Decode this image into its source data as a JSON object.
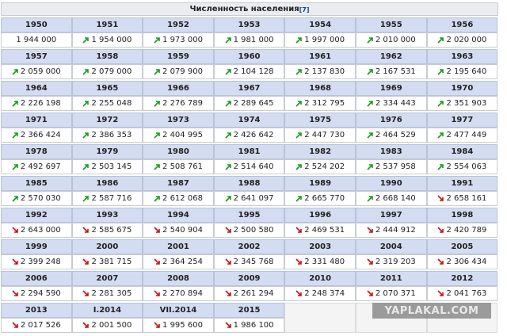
{
  "table": {
    "title": "Численность населения",
    "title_ref": "[7]",
    "cells": [
      {
        "year": "1950",
        "value": "1 944 000",
        "trend": null
      },
      {
        "year": "1951",
        "value": "1 954 000",
        "trend": "up"
      },
      {
        "year": "1952",
        "value": "1 973 000",
        "trend": "up"
      },
      {
        "year": "1953",
        "value": "1 981 000",
        "trend": "up"
      },
      {
        "year": "1954",
        "value": "1 997 000",
        "trend": "up"
      },
      {
        "year": "1955",
        "value": "2 010 000",
        "trend": "up"
      },
      {
        "year": "1956",
        "value": "2 020 000",
        "trend": "up"
      },
      {
        "year": "1957",
        "value": "2 059 000",
        "trend": "up"
      },
      {
        "year": "1958",
        "value": "2 079 000",
        "trend": "up"
      },
      {
        "year": "1959",
        "value": "2 079 900",
        "trend": "up"
      },
      {
        "year": "1960",
        "value": "2 104 128",
        "trend": "up"
      },
      {
        "year": "1961",
        "value": "2 137 830",
        "trend": "up"
      },
      {
        "year": "1962",
        "value": "2 167 531",
        "trend": "up"
      },
      {
        "year": "1963",
        "value": "2 195 640",
        "trend": "up"
      },
      {
        "year": "1964",
        "value": "2 226 198",
        "trend": "up"
      },
      {
        "year": "1965",
        "value": "2 255 048",
        "trend": "up"
      },
      {
        "year": "1966",
        "value": "2 276 789",
        "trend": "up"
      },
      {
        "year": "1967",
        "value": "2 289 645",
        "trend": "up"
      },
      {
        "year": "1968",
        "value": "2 312 795",
        "trend": "up"
      },
      {
        "year": "1969",
        "value": "2 334 443",
        "trend": "up"
      },
      {
        "year": "1970",
        "value": "2 351 903",
        "trend": "up"
      },
      {
        "year": "1971",
        "value": "2 366 424",
        "trend": "up"
      },
      {
        "year": "1972",
        "value": "2 386 353",
        "trend": "up"
      },
      {
        "year": "1973",
        "value": "2 404 995",
        "trend": "up"
      },
      {
        "year": "1974",
        "value": "2 426 642",
        "trend": "up"
      },
      {
        "year": "1975",
        "value": "2 447 730",
        "trend": "up"
      },
      {
        "year": "1976",
        "value": "2 464 529",
        "trend": "up"
      },
      {
        "year": "1977",
        "value": "2 477 449",
        "trend": "up"
      },
      {
        "year": "1978",
        "value": "2 492 697",
        "trend": "up"
      },
      {
        "year": "1979",
        "value": "2 503 145",
        "trend": "up"
      },
      {
        "year": "1980",
        "value": "2 508 761",
        "trend": "up"
      },
      {
        "year": "1981",
        "value": "2 514 640",
        "trend": "up"
      },
      {
        "year": "1982",
        "value": "2 524 202",
        "trend": "up"
      },
      {
        "year": "1983",
        "value": "2 537 958",
        "trend": "up"
      },
      {
        "year": "1984",
        "value": "2 554 063",
        "trend": "up"
      },
      {
        "year": "1985",
        "value": "2 570 030",
        "trend": "up"
      },
      {
        "year": "1986",
        "value": "2 587 716",
        "trend": "up"
      },
      {
        "year": "1987",
        "value": "2 612 068",
        "trend": "up"
      },
      {
        "year": "1988",
        "value": "2 641 097",
        "trend": "up"
      },
      {
        "year": "1989",
        "value": "2 665 770",
        "trend": "up"
      },
      {
        "year": "1990",
        "value": "2 668 140",
        "trend": "up"
      },
      {
        "year": "1991",
        "value": "2 658 161",
        "trend": "down"
      },
      {
        "year": "1992",
        "value": "2 643 000",
        "trend": "down"
      },
      {
        "year": "1993",
        "value": "2 585 675",
        "trend": "down"
      },
      {
        "year": "1994",
        "value": "2 540 904",
        "trend": "down"
      },
      {
        "year": "1995",
        "value": "2 500 580",
        "trend": "down"
      },
      {
        "year": "1996",
        "value": "2 469 531",
        "trend": "down"
      },
      {
        "year": "1997",
        "value": "2 444 912",
        "trend": "down"
      },
      {
        "year": "1998",
        "value": "2 420 789",
        "trend": "down"
      },
      {
        "year": "1999",
        "value": "2 399 248",
        "trend": "down"
      },
      {
        "year": "2000",
        "value": "2 381 715",
        "trend": "down"
      },
      {
        "year": "2001",
        "value": "2 364 254",
        "trend": "down"
      },
      {
        "year": "2002",
        "value": "2 345 768",
        "trend": "down"
      },
      {
        "year": "2003",
        "value": "2 331 480",
        "trend": "down"
      },
      {
        "year": "2004",
        "value": "2 319 203",
        "trend": "down"
      },
      {
        "year": "2005",
        "value": "2 306 434",
        "trend": "down"
      },
      {
        "year": "2006",
        "value": "2 294 590",
        "trend": "down"
      },
      {
        "year": "2007",
        "value": "2 281 305",
        "trend": "down"
      },
      {
        "year": "2008",
        "value": "2 270 894",
        "trend": "down"
      },
      {
        "year": "2009",
        "value": "2 261 294",
        "trend": "down"
      },
      {
        "year": "2010",
        "value": "2 248 374",
        "trend": "down"
      },
      {
        "year": "2011",
        "value": "2 070 371",
        "trend": "down"
      },
      {
        "year": "2012",
        "value": "2 041 763",
        "trend": "down"
      },
      {
        "year": "2013",
        "value": "2 017 526",
        "trend": "down"
      },
      {
        "year": "I.2014",
        "value": "2 001 500",
        "trend": "down"
      },
      {
        "year": "VII.2014",
        "value": "1 995 600",
        "trend": "down"
      },
      {
        "year": "2015",
        "value": "1 986 100",
        "trend": "down"
      }
    ],
    "watermark": "YAPLAKAL.COM"
  }
}
